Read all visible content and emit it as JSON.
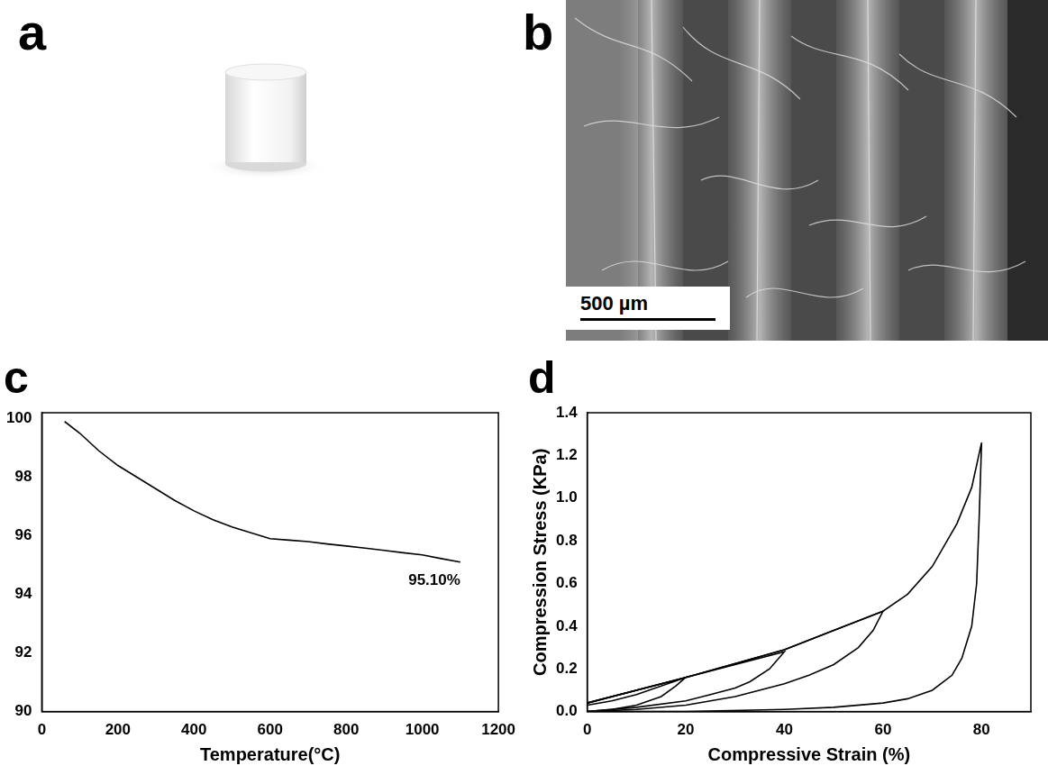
{
  "images": [
    {
      "label": "a"
    },
    {
      "label": "b",
      "scale_bar": "500 µm"
    }
  ],
  "chart_data": [
    {
      "type": "line",
      "title": "c",
      "x_label": "Temperature(°C)",
      "xlim": [
        0,
        1200
      ],
      "xticks": [
        0,
        200,
        400,
        600,
        800,
        1000,
        1200
      ],
      "ylim": [
        90,
        100.2
      ],
      "yticks": [
        90,
        92,
        94,
        96,
        98,
        100
      ],
      "grid": false,
      "series": [
        {
          "color": "#000000",
          "x": [
            60,
            100,
            150,
            200,
            250,
            300,
            350,
            400,
            450,
            500,
            550,
            600,
            650,
            700,
            750,
            800,
            850,
            900,
            950,
            1000,
            1050,
            1100
          ],
          "values": [
            99.9,
            99.5,
            98.9,
            98.4,
            98.0,
            97.6,
            97.2,
            96.85,
            96.55,
            96.3,
            96.1,
            95.9,
            95.85,
            95.8,
            95.72,
            95.65,
            95.58,
            95.5,
            95.42,
            95.35,
            95.22,
            95.1
          ]
        }
      ],
      "annotations": [
        "95.10%"
      ]
    },
    {
      "type": "line",
      "title": "d",
      "x_label": "Compressive Strain (%)",
      "y_label": "Compression Stress (KPa)",
      "xlim": [
        0,
        90
      ],
      "xticks": [
        0,
        20,
        40,
        60,
        80
      ],
      "ylim": [
        0,
        1.4
      ],
      "yticks": [
        {
          "value": 0,
          "label": "0.0"
        },
        0.2,
        0.4,
        0.6,
        0.8,
        {
          "value": 1,
          "label": "1.0"
        },
        1.2,
        1.4
      ],
      "grid": false,
      "series": [
        {
          "color": "#000000",
          "x": [
            0,
            5,
            10,
            15,
            20,
            18,
            15,
            10,
            5,
            0
          ],
          "values": [
            0.03,
            0.05,
            0.08,
            0.12,
            0.16,
            0.12,
            0.07,
            0.03,
            0.01,
            0
          ]
        },
        {
          "color": "#000000",
          "x": [
            0,
            10,
            20,
            30,
            40,
            37,
            33,
            30,
            25,
            20,
            10,
            0
          ],
          "values": [
            0.04,
            0.1,
            0.16,
            0.22,
            0.28,
            0.2,
            0.14,
            0.11,
            0.08,
            0.05,
            0.02,
            0
          ]
        },
        {
          "color": "#000000",
          "x": [
            0,
            20,
            40,
            50,
            60,
            58,
            55,
            50,
            45,
            40,
            30,
            20,
            10,
            0
          ],
          "values": [
            0.04,
            0.16,
            0.29,
            0.38,
            0.47,
            0.38,
            0.3,
            0.22,
            0.17,
            0.13,
            0.07,
            0.03,
            0.01,
            0
          ]
        },
        {
          "color": "#000000",
          "x": [
            0,
            20,
            40,
            60,
            65,
            70,
            75,
            78,
            80,
            79.5,
            79,
            78,
            76,
            74,
            70,
            65,
            60,
            50,
            40,
            20,
            0
          ],
          "values": [
            0.04,
            0.16,
            0.29,
            0.47,
            0.55,
            0.68,
            0.88,
            1.05,
            1.26,
            0.9,
            0.6,
            0.4,
            0.25,
            0.17,
            0.1,
            0.06,
            0.04,
            0.02,
            0.01,
            0,
            0
          ]
        }
      ]
    }
  ]
}
